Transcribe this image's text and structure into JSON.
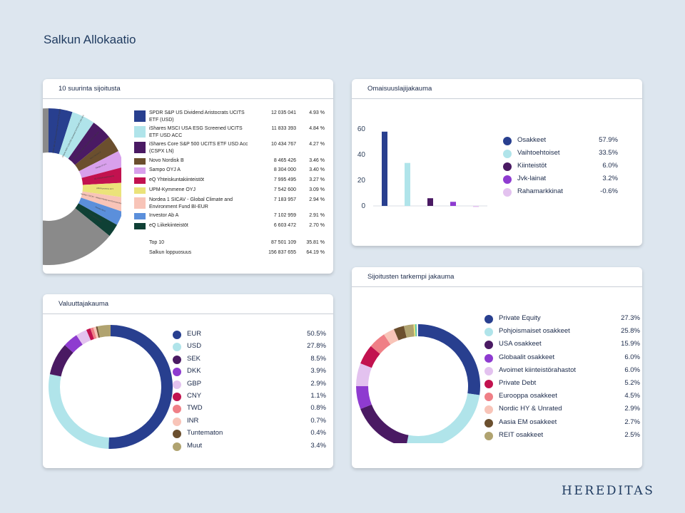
{
  "page_title": "Salkun Allokaatio",
  "brand": "HEREDITAS",
  "top10": {
    "title": "10 suurinta sijoitusta",
    "items": [
      {
        "name": "SPDR S&P US Dividend Aristocrats UCITS ETF (USD)",
        "value": "12 035 041",
        "pct": "4.93 %",
        "share": 4.93,
        "color": "#283f8f"
      },
      {
        "name": "iShares MSCI USA ESG Screened UCITS ETF USD ACC",
        "value": "11 833 393",
        "pct": "4.84 %",
        "share": 4.84,
        "color": "#b0e4ea"
      },
      {
        "name": "iShares Core S&P 500 UCITS ETF USD Acc (CSPX LN)",
        "value": "10 434 767",
        "pct": "4.27 %",
        "share": 4.27,
        "color": "#4a1a63"
      },
      {
        "name": "Novo Nordisk B",
        "value": "8 465 426",
        "pct": "3.46 %",
        "share": 3.46,
        "color": "#6b4f2e"
      },
      {
        "name": "Sampo OYJ A",
        "value": "8 304 000",
        "pct": "3.40 %",
        "share": 3.4,
        "color": "#d8a0ec"
      },
      {
        "name": "eQ Yhteiskuntakiinteistöt",
        "value": "7 995 495",
        "pct": "3.27 %",
        "share": 3.27,
        "color": "#c2124f"
      },
      {
        "name": "UPM-Kymmene OYJ",
        "value": "7 542 600",
        "pct": "3.09 %",
        "share": 3.09,
        "color": "#ebe37a"
      },
      {
        "name": "Nordea 1 SICAV - Global Climate and Environment Fund BI-EUR",
        "value": "7 183 957",
        "pct": "2.94 %",
        "share": 2.94,
        "color": "#f8c4b8"
      },
      {
        "name": "Investor Ab A",
        "value": "7 102 959",
        "pct": "2.91 %",
        "share": 2.91,
        "color": "#5b8fdb"
      },
      {
        "name": "eQ Liikekiinteistöt",
        "value": "6 603 472",
        "pct": "2.70 %",
        "share": 2.7,
        "color": "#0f4035"
      }
    ],
    "summary": [
      {
        "label": "Top 10",
        "value": "87 501 109",
        "pct": "35.81 %"
      },
      {
        "label": "Salkun loppuosuus",
        "value": "156 837 655",
        "pct": "64.19 %"
      }
    ],
    "wedge_labels": [
      "SPDR S&P US Dividend Aristocrats UCITS ETF (USD)",
      "iShares MSCI USA ESG Screened UCITS ETF USD ACC",
      "iShares Core S&P 500 UCITS ETF USD Acc",
      "Novo Nordisk B",
      "Sampo OYJ A",
      "eQ Yhteiskuntakiinteistöt",
      "UPM-Kymmene OYJ",
      "Nordea 1 SICAV - Global Climate and Environment Fund",
      "Investor Ab A",
      "eQ Liikekiinteistöt"
    ],
    "rest_share": 64.19,
    "rest_color": "#8a8a8a"
  },
  "asset": {
    "title": "Omaisuuslajijakauma",
    "items": [
      {
        "label": "Osakkeet",
        "value": "57.9%",
        "num": 57.9,
        "color": "#283f8f"
      },
      {
        "label": "Vaihtoehtoiset",
        "value": "33.5%",
        "num": 33.5,
        "color": "#b0e4ea"
      },
      {
        "label": "Kiinteistöt",
        "value": "6.0%",
        "num": 6.0,
        "color": "#4a1a63"
      },
      {
        "label": "Jvk-lainat",
        "value": "3.2%",
        "num": 3.2,
        "color": "#8e3bd0"
      },
      {
        "label": "Rahamarkkinat",
        "value": "-0.6%",
        "num": -0.6,
        "color": "#e3c2ef"
      }
    ]
  },
  "chart_data": [
    {
      "type": "bar",
      "title": "Omaisuuslajijakauma",
      "categories": [
        "Osakkeet",
        "Vaihtoehtoiset",
        "Kiinteistöt",
        "Jvk-lainat",
        "Rahamarkkinat"
      ],
      "values": [
        57.9,
        33.5,
        6.0,
        3.2,
        -0.6
      ],
      "ylim": [
        0,
        60
      ],
      "yticks": [
        "0",
        "20",
        "40",
        "60"
      ],
      "xlabel": "",
      "ylabel": ""
    }
  ],
  "currency": {
    "title": "Valuuttajakauma",
    "items": [
      {
        "label": "EUR",
        "value": "50.5%",
        "num": 50.5,
        "color": "#283f8f"
      },
      {
        "label": "USD",
        "value": "27.8%",
        "num": 27.8,
        "color": "#b0e4ea"
      },
      {
        "label": "SEK",
        "value": "8.5%",
        "num": 8.5,
        "color": "#4a1a63"
      },
      {
        "label": "DKK",
        "value": "3.9%",
        "num": 3.9,
        "color": "#8e3bd0"
      },
      {
        "label": "GBP",
        "value": "2.9%",
        "num": 2.9,
        "color": "#e3c2ef"
      },
      {
        "label": "CNY",
        "value": "1.1%",
        "num": 1.1,
        "color": "#c2124f"
      },
      {
        "label": "TWD",
        "value": "0.8%",
        "num": 0.8,
        "color": "#ef7f86"
      },
      {
        "label": "INR",
        "value": "0.7%",
        "num": 0.7,
        "color": "#f8c4b8"
      },
      {
        "label": "Tuntematon",
        "value": "0.4%",
        "num": 0.4,
        "color": "#6b4f2e"
      },
      {
        "label": "Muut",
        "value": "3.4%",
        "num": 3.4,
        "color": "#b0a370"
      }
    ]
  },
  "detail": {
    "title": "Sijoitusten tarkempi jakauma",
    "items": [
      {
        "label": "Private Equity",
        "value": "27.3%",
        "num": 27.3,
        "color": "#283f8f"
      },
      {
        "label": "Pohjoismaiset osakkeet",
        "value": "25.8%",
        "num": 25.8,
        "color": "#b0e4ea"
      },
      {
        "label": "USA osakkeet",
        "value": "15.9%",
        "num": 15.9,
        "color": "#4a1a63"
      },
      {
        "label": "Globaalit osakkeet",
        "value": "6.0%",
        "num": 6.0,
        "color": "#8e3bd0"
      },
      {
        "label": "Avoimet kiinteistörahastot",
        "value": "6.0%",
        "num": 6.0,
        "color": "#e3c2ef"
      },
      {
        "label": "Private Debt",
        "value": "5.2%",
        "num": 5.2,
        "color": "#c2124f"
      },
      {
        "label": "Eurooppa osakkeet",
        "value": "4.5%",
        "num": 4.5,
        "color": "#ef7f86"
      },
      {
        "label": "Nordic HY & Unrated",
        "value": "2.9%",
        "num": 2.9,
        "color": "#f8c4b8"
      },
      {
        "label": "Aasia EM osakkeet",
        "value": "2.7%",
        "num": 2.7,
        "color": "#6b4f2e"
      },
      {
        "label": "REIT osakkeet",
        "value": "2.5%",
        "num": 2.5,
        "color": "#b0a370"
      }
    ],
    "tail_colors": [
      "#ebe37a",
      "#5dc9a6",
      "#f1eef4"
    ]
  }
}
